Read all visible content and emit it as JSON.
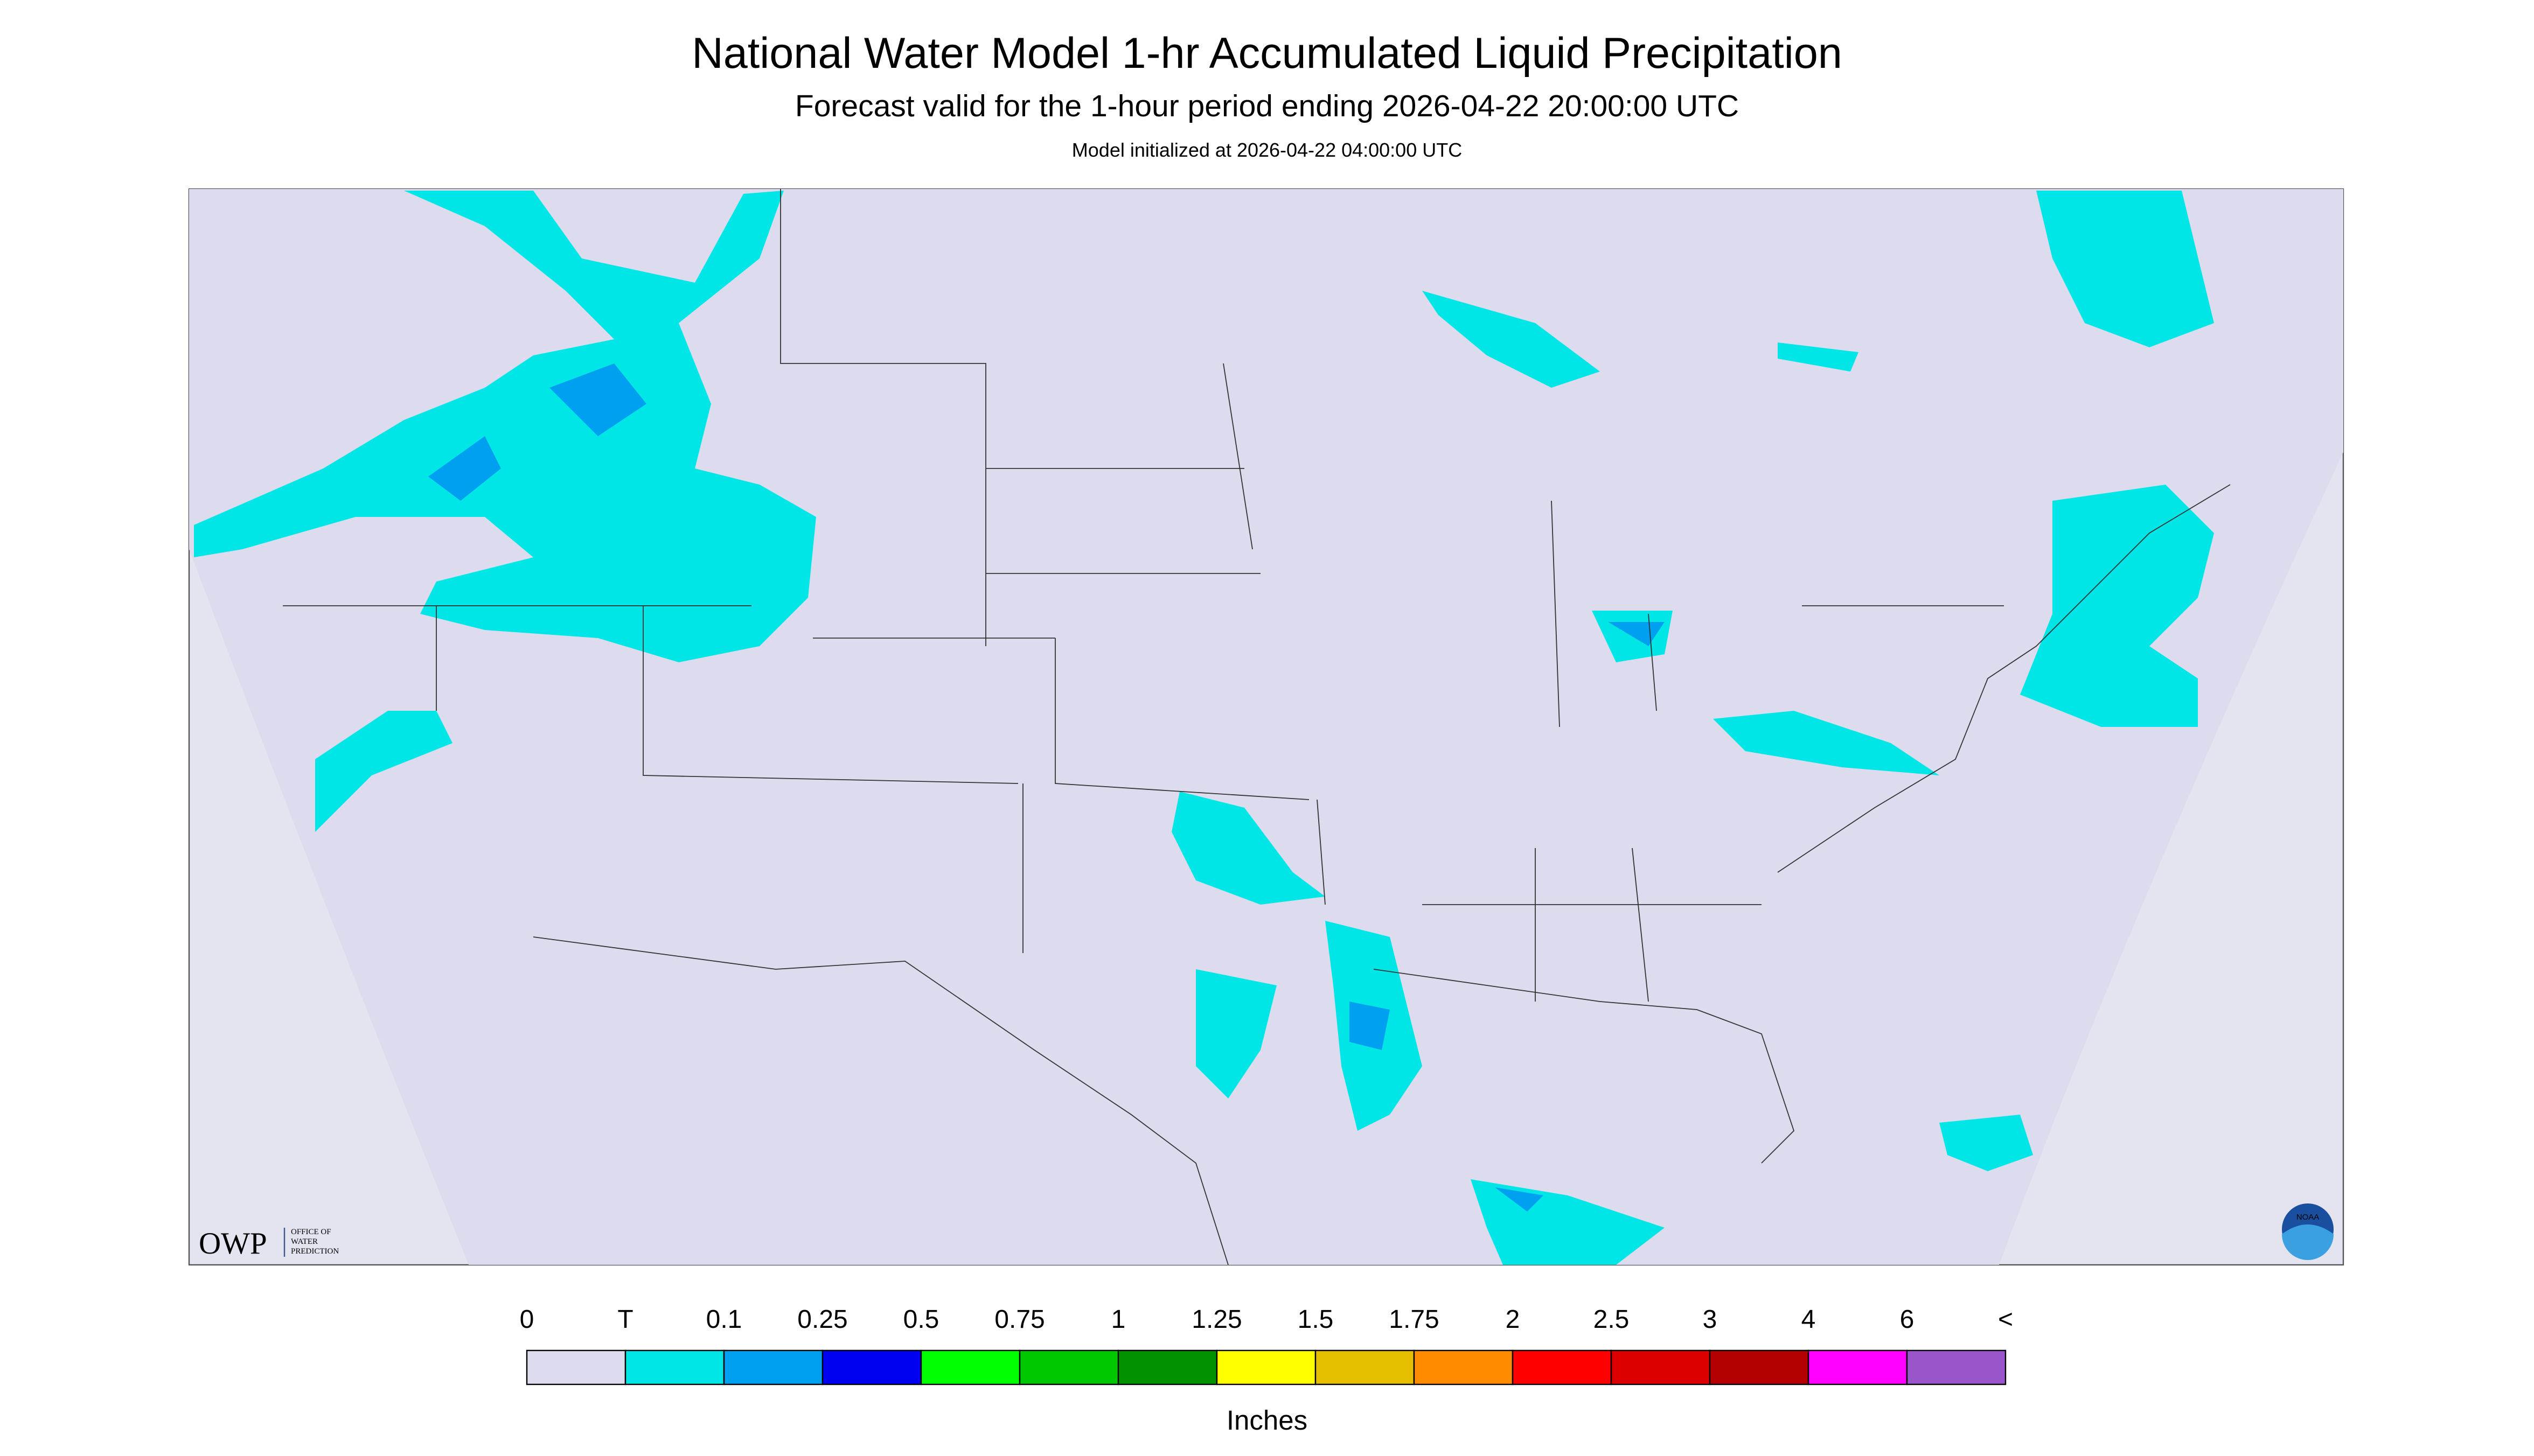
{
  "header": {
    "title": "National Water Model 1-hr Accumulated Liquid Precipitation",
    "subtitle": "Forecast valid for the 1-hour period ending 2026-04-22 20:00:00 UTC",
    "note": "Model initialized at 2026-04-22 04:00:00 UTC"
  },
  "legend": {
    "labels": [
      "0",
      "T",
      "0.1",
      "0.25",
      "0.5",
      "0.75",
      "1",
      "1.25",
      "1.5",
      "1.75",
      "2",
      "2.5",
      "3",
      "4",
      "6",
      "<"
    ],
    "colors": [
      "#dcdcee",
      "#00e6e6",
      "#00a0f0",
      "#0000f0",
      "#00ff00",
      "#00c800",
      "#009000",
      "#ffff00",
      "#e6be00",
      "#ff8c00",
      "#ff0000",
      "#dc0000",
      "#b40000",
      "#ff00ff",
      "#9955c9"
    ],
    "unit": "Inches"
  },
  "logo": {
    "mark": "OWP",
    "line1": "OFFICE OF",
    "line2": "WATER",
    "line3": "PREDICTION",
    "badge": "NOAA"
  }
}
